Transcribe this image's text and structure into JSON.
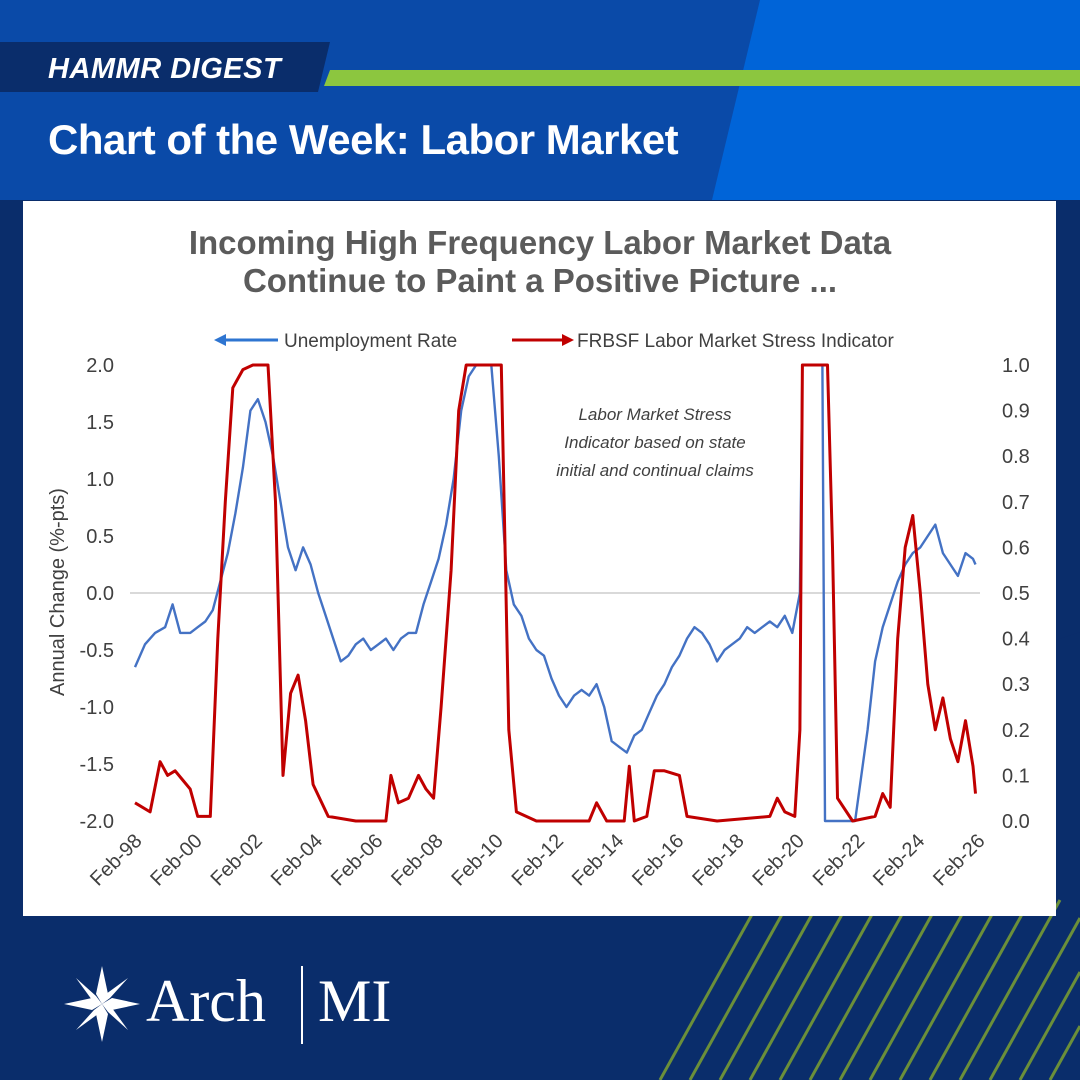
{
  "banner": {
    "kicker": "HAMMR DIGEST",
    "title": "Chart of the Week: Labor Market"
  },
  "brand": {
    "name_left": "Arch",
    "name_right": "MI",
    "colors": {
      "navy": "#0a2d6b",
      "blue": "#0054c6",
      "bright_blue": "#0064d8",
      "green": "#8cc63f"
    },
    "logo_icon": "star-compass-icon"
  },
  "chart_data": {
    "type": "line",
    "title_lines": [
      "Incoming High Frequency Labor Market Data",
      "Continue to Paint a Positive Picture ..."
    ],
    "annotation_lines": [
      "Labor Market Stress",
      "Indicator based on state",
      "initial and continual claims"
    ],
    "legend": {
      "placement": "top",
      "entries": [
        "Unemployment Rate",
        "FRBSF Labor Market Stress Indicator"
      ]
    },
    "ylabel_left": "Annual Change (%-pts)",
    "ylim_left": [
      -2.0,
      2.0
    ],
    "yticks_left": [
      "2.0",
      "1.5",
      "1.0",
      "0.5",
      "0.0",
      "-0.5",
      "-1.0",
      "-1.5",
      "-2.0"
    ],
    "ylim_right": [
      0.0,
      1.0
    ],
    "yticks_right": [
      "1.0",
      "0.9",
      "0.8",
      "0.7",
      "0.6",
      "0.5",
      "0.4",
      "0.3",
      "0.2",
      "0.1",
      "0.0"
    ],
    "xticks": [
      "Feb-98",
      "Feb-00",
      "Feb-02",
      "Feb-04",
      "Feb-06",
      "Feb-08",
      "Feb-10",
      "Feb-12",
      "Feb-14",
      "Feb-16",
      "Feb-18",
      "Feb-20",
      "Feb-22",
      "Feb-24",
      "Feb-26"
    ],
    "xlim": [
      "1998-02",
      "2026-02"
    ],
    "grid": false,
    "series": [
      {
        "name": "Unemployment Rate",
        "axis": "left",
        "color": "#4472c4",
        "points": [
          [
            "1998-02",
            -0.65
          ],
          [
            "1998-06",
            -0.45
          ],
          [
            "1998-10",
            -0.35
          ],
          [
            "1999-02",
            -0.3
          ],
          [
            "1999-05",
            -0.1
          ],
          [
            "1999-08",
            -0.35
          ],
          [
            "1999-12",
            -0.35
          ],
          [
            "2000-03",
            -0.3
          ],
          [
            "2000-06",
            -0.25
          ],
          [
            "2000-09",
            -0.15
          ],
          [
            "2000-12",
            0.1
          ],
          [
            "2001-03",
            0.35
          ],
          [
            "2001-06",
            0.7
          ],
          [
            "2001-09",
            1.1
          ],
          [
            "2001-12",
            1.6
          ],
          [
            "2002-03",
            1.7
          ],
          [
            "2002-06",
            1.5
          ],
          [
            "2002-09",
            1.2
          ],
          [
            "2002-12",
            0.8
          ],
          [
            "2003-03",
            0.4
          ],
          [
            "2003-06",
            0.2
          ],
          [
            "2003-09",
            0.4
          ],
          [
            "2003-12",
            0.25
          ],
          [
            "2004-03",
            0.0
          ],
          [
            "2004-06",
            -0.2
          ],
          [
            "2004-09",
            -0.4
          ],
          [
            "2004-12",
            -0.6
          ],
          [
            "2005-03",
            -0.55
          ],
          [
            "2005-06",
            -0.45
          ],
          [
            "2005-09",
            -0.4
          ],
          [
            "2005-12",
            -0.5
          ],
          [
            "2006-03",
            -0.45
          ],
          [
            "2006-06",
            -0.4
          ],
          [
            "2006-09",
            -0.5
          ],
          [
            "2006-12",
            -0.4
          ],
          [
            "2007-03",
            -0.35
          ],
          [
            "2007-06",
            -0.35
          ],
          [
            "2007-09",
            -0.1
          ],
          [
            "2007-12",
            0.1
          ],
          [
            "2008-03",
            0.3
          ],
          [
            "2008-06",
            0.6
          ],
          [
            "2008-09",
            1.0
          ],
          [
            "2008-12",
            1.6
          ],
          [
            "2009-03",
            1.9
          ],
          [
            "2009-06",
            2.0
          ],
          [
            "2009-09",
            2.0
          ],
          [
            "2009-12",
            2.0
          ],
          [
            "2010-03",
            1.2
          ],
          [
            "2010-06",
            0.2
          ],
          [
            "2010-09",
            -0.1
          ],
          [
            "2010-12",
            -0.2
          ],
          [
            "2011-03",
            -0.4
          ],
          [
            "2011-06",
            -0.5
          ],
          [
            "2011-09",
            -0.55
          ],
          [
            "2011-12",
            -0.75
          ],
          [
            "2012-03",
            -0.9
          ],
          [
            "2012-06",
            -1.0
          ],
          [
            "2012-09",
            -0.9
          ],
          [
            "2012-12",
            -0.85
          ],
          [
            "2013-03",
            -0.9
          ],
          [
            "2013-06",
            -0.8
          ],
          [
            "2013-09",
            -1.0
          ],
          [
            "2013-12",
            -1.3
          ],
          [
            "2014-03",
            -1.35
          ],
          [
            "2014-06",
            -1.4
          ],
          [
            "2014-09",
            -1.25
          ],
          [
            "2014-12",
            -1.2
          ],
          [
            "2015-03",
            -1.05
          ],
          [
            "2015-06",
            -0.9
          ],
          [
            "2015-09",
            -0.8
          ],
          [
            "2015-12",
            -0.65
          ],
          [
            "2016-03",
            -0.55
          ],
          [
            "2016-06",
            -0.4
          ],
          [
            "2016-09",
            -0.3
          ],
          [
            "2016-12",
            -0.35
          ],
          [
            "2017-03",
            -0.45
          ],
          [
            "2017-06",
            -0.6
          ],
          [
            "2017-09",
            -0.5
          ],
          [
            "2017-12",
            -0.45
          ],
          [
            "2018-03",
            -0.4
          ],
          [
            "2018-06",
            -0.3
          ],
          [
            "2018-09",
            -0.35
          ],
          [
            "2018-12",
            -0.3
          ],
          [
            "2019-03",
            -0.25
          ],
          [
            "2019-06",
            -0.3
          ],
          [
            "2019-09",
            -0.2
          ],
          [
            "2019-12",
            -0.35
          ],
          [
            "2020-03",
            0.0
          ],
          [
            "2020-04",
            2.0
          ],
          [
            "2020-12",
            2.0
          ],
          [
            "2021-01",
            -2.0
          ],
          [
            "2022-01",
            -2.0
          ],
          [
            "2022-06",
            -1.2
          ],
          [
            "2022-09",
            -0.6
          ],
          [
            "2022-12",
            -0.3
          ],
          [
            "2023-03",
            -0.1
          ],
          [
            "2023-06",
            0.1
          ],
          [
            "2023-09",
            0.25
          ],
          [
            "2023-12",
            0.35
          ],
          [
            "2024-03",
            0.4
          ],
          [
            "2024-06",
            0.5
          ],
          [
            "2024-09",
            0.6
          ],
          [
            "2024-12",
            0.35
          ],
          [
            "2025-03",
            0.25
          ],
          [
            "2025-06",
            0.15
          ],
          [
            "2025-09",
            0.35
          ],
          [
            "2025-12",
            0.3
          ],
          [
            "2026-01",
            0.25
          ]
        ]
      },
      {
        "name": "FRBSF Labor Market Stress Indicator",
        "axis": "right",
        "color": "#c00000",
        "points": [
          [
            "1998-02",
            0.04
          ],
          [
            "1998-08",
            0.02
          ],
          [
            "1998-12",
            0.13
          ],
          [
            "1999-03",
            0.1
          ],
          [
            "1999-06",
            0.11
          ],
          [
            "1999-09",
            0.09
          ],
          [
            "1999-12",
            0.07
          ],
          [
            "2000-03",
            0.01
          ],
          [
            "2000-08",
            0.01
          ],
          [
            "2000-11",
            0.4
          ],
          [
            "2001-02",
            0.7
          ],
          [
            "2001-05",
            0.95
          ],
          [
            "2001-09",
            0.99
          ],
          [
            "2002-01",
            1.0
          ],
          [
            "2002-07",
            1.0
          ],
          [
            "2002-10",
            0.7
          ],
          [
            "2003-01",
            0.1
          ],
          [
            "2003-04",
            0.28
          ],
          [
            "2003-07",
            0.32
          ],
          [
            "2003-10",
            0.22
          ],
          [
            "2004-01",
            0.08
          ],
          [
            "2004-07",
            0.01
          ],
          [
            "2005-06",
            0.0
          ],
          [
            "2006-06",
            0.0
          ],
          [
            "2006-08",
            0.1
          ],
          [
            "2006-11",
            0.04
          ],
          [
            "2007-03",
            0.05
          ],
          [
            "2007-07",
            0.1
          ],
          [
            "2007-10",
            0.07
          ],
          [
            "2008-01",
            0.05
          ],
          [
            "2008-04",
            0.25
          ],
          [
            "2008-08",
            0.55
          ],
          [
            "2008-11",
            0.9
          ],
          [
            "2009-02",
            1.0
          ],
          [
            "2010-04",
            1.0
          ],
          [
            "2010-07",
            0.2
          ],
          [
            "2010-10",
            0.02
          ],
          [
            "2011-06",
            0.0
          ],
          [
            "2013-03",
            0.0
          ],
          [
            "2013-06",
            0.04
          ],
          [
            "2013-10",
            0.0
          ],
          [
            "2014-05",
            0.0
          ],
          [
            "2014-07",
            0.12
          ],
          [
            "2014-09",
            0.0
          ],
          [
            "2015-02",
            0.01
          ],
          [
            "2015-05",
            0.11
          ],
          [
            "2015-09",
            0.11
          ],
          [
            "2016-03",
            0.1
          ],
          [
            "2016-06",
            0.01
          ],
          [
            "2017-06",
            0.0
          ],
          [
            "2019-03",
            0.01
          ],
          [
            "2019-06",
            0.05
          ],
          [
            "2019-09",
            0.02
          ],
          [
            "2020-01",
            0.01
          ],
          [
            "2020-03",
            0.2
          ],
          [
            "2020-04",
            1.0
          ],
          [
            "2021-02",
            1.0
          ],
          [
            "2021-04",
            0.6
          ],
          [
            "2021-06",
            0.05
          ],
          [
            "2021-12",
            0.0
          ],
          [
            "2022-09",
            0.01
          ],
          [
            "2022-12",
            0.06
          ],
          [
            "2023-03",
            0.03
          ],
          [
            "2023-06",
            0.4
          ],
          [
            "2023-09",
            0.6
          ],
          [
            "2023-12",
            0.67
          ],
          [
            "2024-03",
            0.5
          ],
          [
            "2024-06",
            0.3
          ],
          [
            "2024-09",
            0.2
          ],
          [
            "2024-12",
            0.27
          ],
          [
            "2025-03",
            0.18
          ],
          [
            "2025-06",
            0.13
          ],
          [
            "2025-09",
            0.22
          ],
          [
            "2025-12",
            0.12
          ],
          [
            "2026-01",
            0.06
          ]
        ]
      }
    ]
  }
}
